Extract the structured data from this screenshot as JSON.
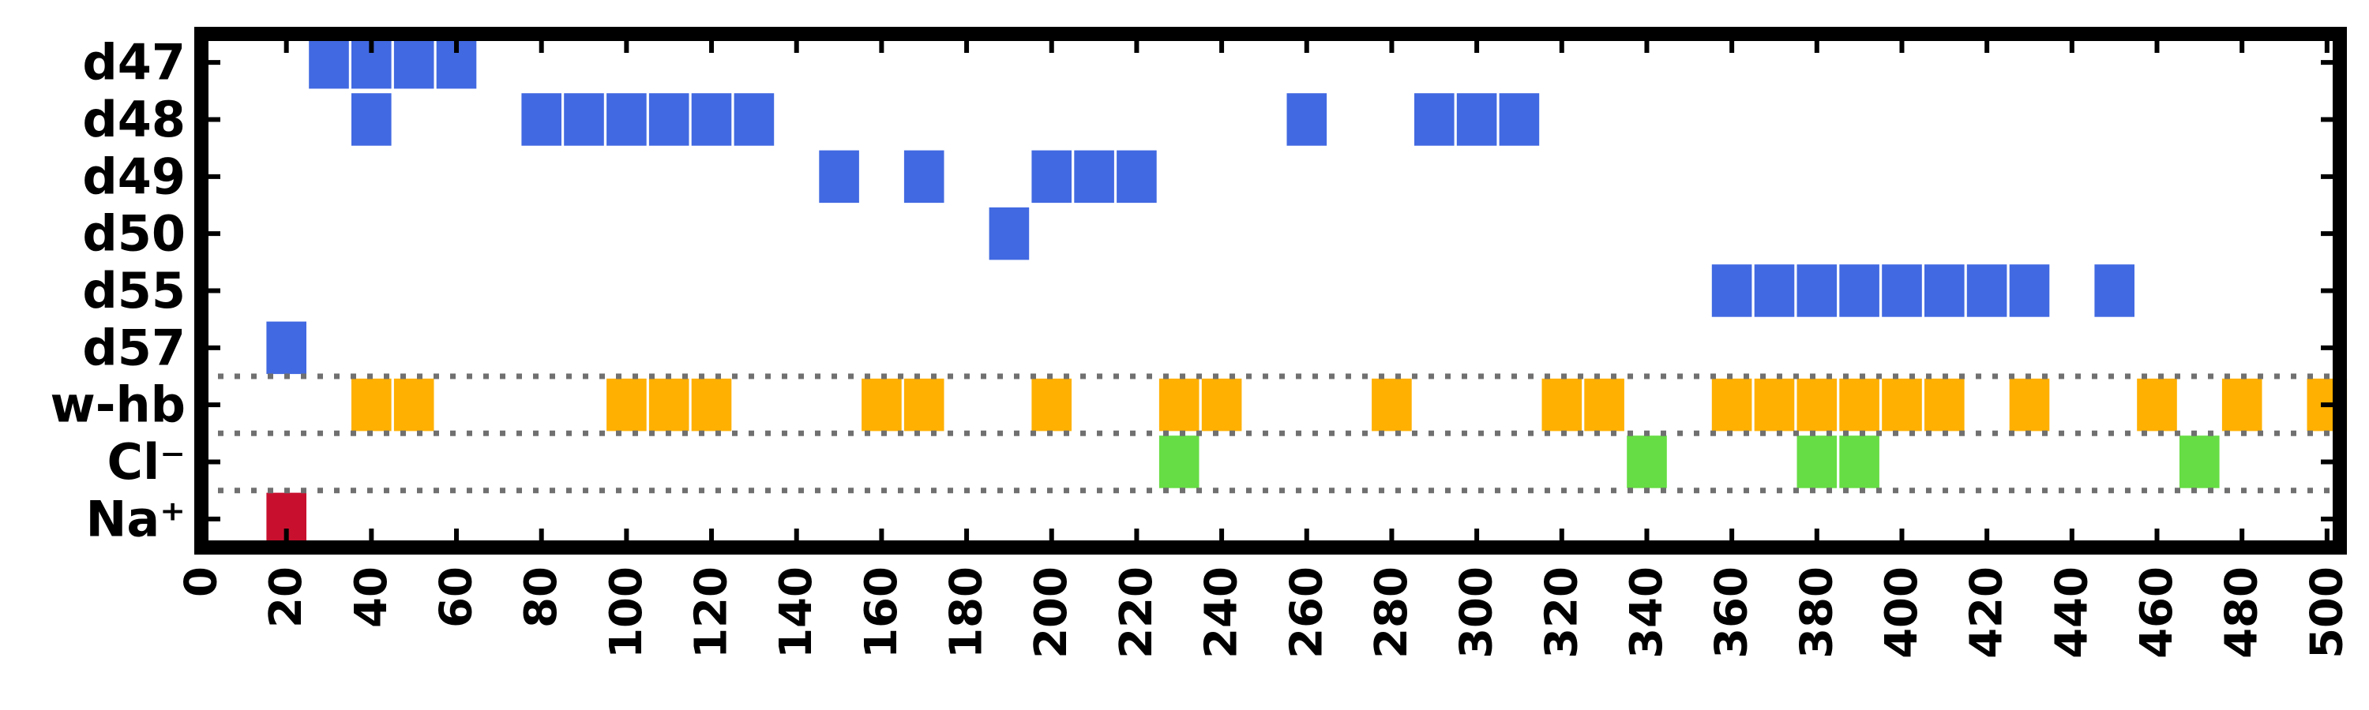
{
  "chart_data": {
    "type": "heatmap",
    "xlim": [
      0,
      503
    ],
    "x_ticks": [
      0,
      20,
      40,
      60,
      80,
      100,
      120,
      140,
      160,
      180,
      200,
      220,
      240,
      260,
      280,
      300,
      320,
      340,
      360,
      380,
      400,
      420,
      440,
      460,
      480,
      500
    ],
    "x_tick_labels": [
      "0",
      "20",
      "40",
      "60",
      "80",
      "100",
      "120",
      "140",
      "160",
      "180",
      "200",
      "220",
      "240",
      "260",
      "280",
      "300",
      "320",
      "340",
      "360",
      "380",
      "400",
      "420",
      "440",
      "460",
      "480",
      "500"
    ],
    "rows": [
      "d47",
      "d48",
      "d49",
      "d50",
      "d55",
      "d57",
      "w-hb",
      "Cl⁻",
      "Na⁺"
    ],
    "separators_after_rows": [
      "d57",
      "w-hb",
      "Cl⁻"
    ],
    "grid": false,
    "series": [
      {
        "row": "d47",
        "color": "#4169e1",
        "x": [
          30,
          40,
          50,
          60
        ]
      },
      {
        "row": "d48",
        "color": "#4169e1",
        "x": [
          40,
          80,
          90,
          100,
          110,
          120,
          130,
          260,
          290,
          300,
          310
        ]
      },
      {
        "row": "d49",
        "color": "#4169e1",
        "x": [
          150,
          170,
          200,
          210,
          220
        ]
      },
      {
        "row": "d50",
        "color": "#4169e1",
        "x": [
          190
        ]
      },
      {
        "row": "d55",
        "color": "#4169e1",
        "x": [
          360,
          370,
          380,
          390,
          400,
          410,
          420,
          430,
          450
        ]
      },
      {
        "row": "d57",
        "color": "#4169e1",
        "x": [
          20
        ]
      },
      {
        "row": "w-hb",
        "color": "#ffb000",
        "x": [
          40,
          50,
          100,
          110,
          120,
          160,
          170,
          200,
          230,
          240,
          280,
          320,
          330,
          360,
          370,
          380,
          390,
          400,
          410,
          430,
          460,
          480,
          500
        ]
      },
      {
        "row": "Cl⁻",
        "color": "#66dd44",
        "x": [
          230,
          340,
          380,
          390,
          470
        ]
      },
      {
        "row": "Na⁺",
        "color": "#c8102e",
        "x": [
          20
        ]
      }
    ]
  }
}
